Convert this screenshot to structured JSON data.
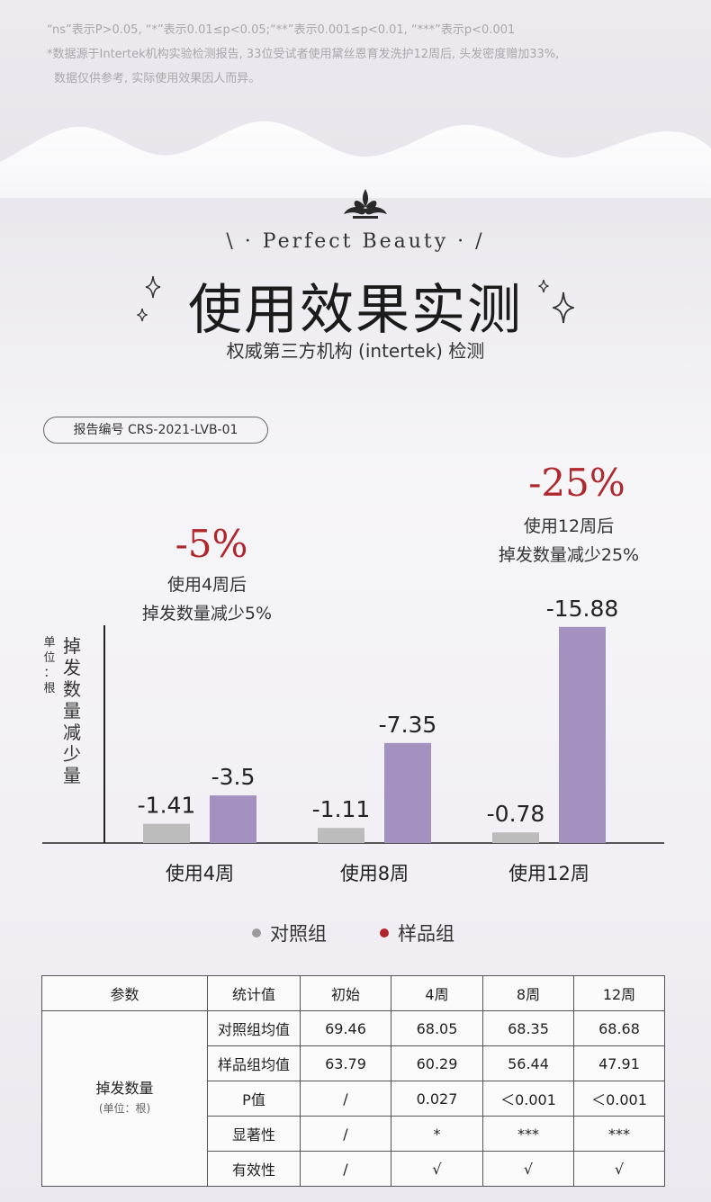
{
  "footnotes": [
    "“ns”表示P>0.05, “*”表示0.01≤p<0.05;“**”表示0.001≤p<0.01, “***”表示p<0.001",
    "*数据源于Intertek机构实验检测报告, 33位受试者使用黛丝恩育发洗护12周后, 头发密度赠加33%,",
    "数据仅供参考, 实际使用效果因人而异。"
  ],
  "header": {
    "subtitle": "\\ · Perfect Beauty · /",
    "title": "使用效果实测",
    "description": "权威第三方机构 (intertek) 检测",
    "report_no": "报告编号 CRS-2021-LVB-01"
  },
  "callouts": [
    {
      "pct": "-5%",
      "line1": "使用4周后",
      "line2": "掉发数量减少5%"
    },
    {
      "pct": "-25%",
      "line1": "使用12周后",
      "line2": "掉发数量减少25%"
    }
  ],
  "axis_unit": {
    "small": "单位：根",
    "big": "掉发数量减少量"
  },
  "chart_data": {
    "type": "bar",
    "categories": [
      "使用4周",
      "使用8周",
      "使用12周"
    ],
    "series": [
      {
        "name": "对照组",
        "values": [
          -1.41,
          -1.11,
          -0.78
        ],
        "labels": [
          "-1.41",
          "-1.11",
          "-0.78"
        ],
        "color": "#bdbcbd"
      },
      {
        "name": "样品组",
        "values": [
          -3.5,
          -7.35,
          -15.88
        ],
        "labels": [
          "-3.5",
          "-7.35",
          "-15.88"
        ],
        "color": "#a392c0"
      }
    ],
    "ylabel": "掉发数量减少量",
    "ylim": [
      0,
      -16
    ]
  },
  "legend": [
    {
      "label": "对照组",
      "dot_color": "#9a9a9a"
    },
    {
      "label": "样品组",
      "dot_color": "#b0242a"
    }
  ],
  "table": {
    "headers": [
      "参数",
      "统计值",
      "初始",
      "4周",
      "8周",
      "12周"
    ],
    "param_name": "掉发数量",
    "param_unit": "(单位：根)",
    "rows": [
      [
        "对照组均值",
        "69.46",
        "68.05",
        "68.35",
        "68.68"
      ],
      [
        "样品组均值",
        "63.79",
        "60.29",
        "56.44",
        "47.91"
      ],
      [
        "P值",
        "/",
        "0.027",
        "＜0.001",
        "＜0.001"
      ],
      [
        "显著性",
        "/",
        "*",
        "***",
        "***"
      ],
      [
        "有效性",
        "/",
        "√",
        "√",
        "√"
      ]
    ]
  },
  "colors": {
    "accent": "#b0282c",
    "sample": "#a392c0",
    "control": "#bdbcbd"
  }
}
